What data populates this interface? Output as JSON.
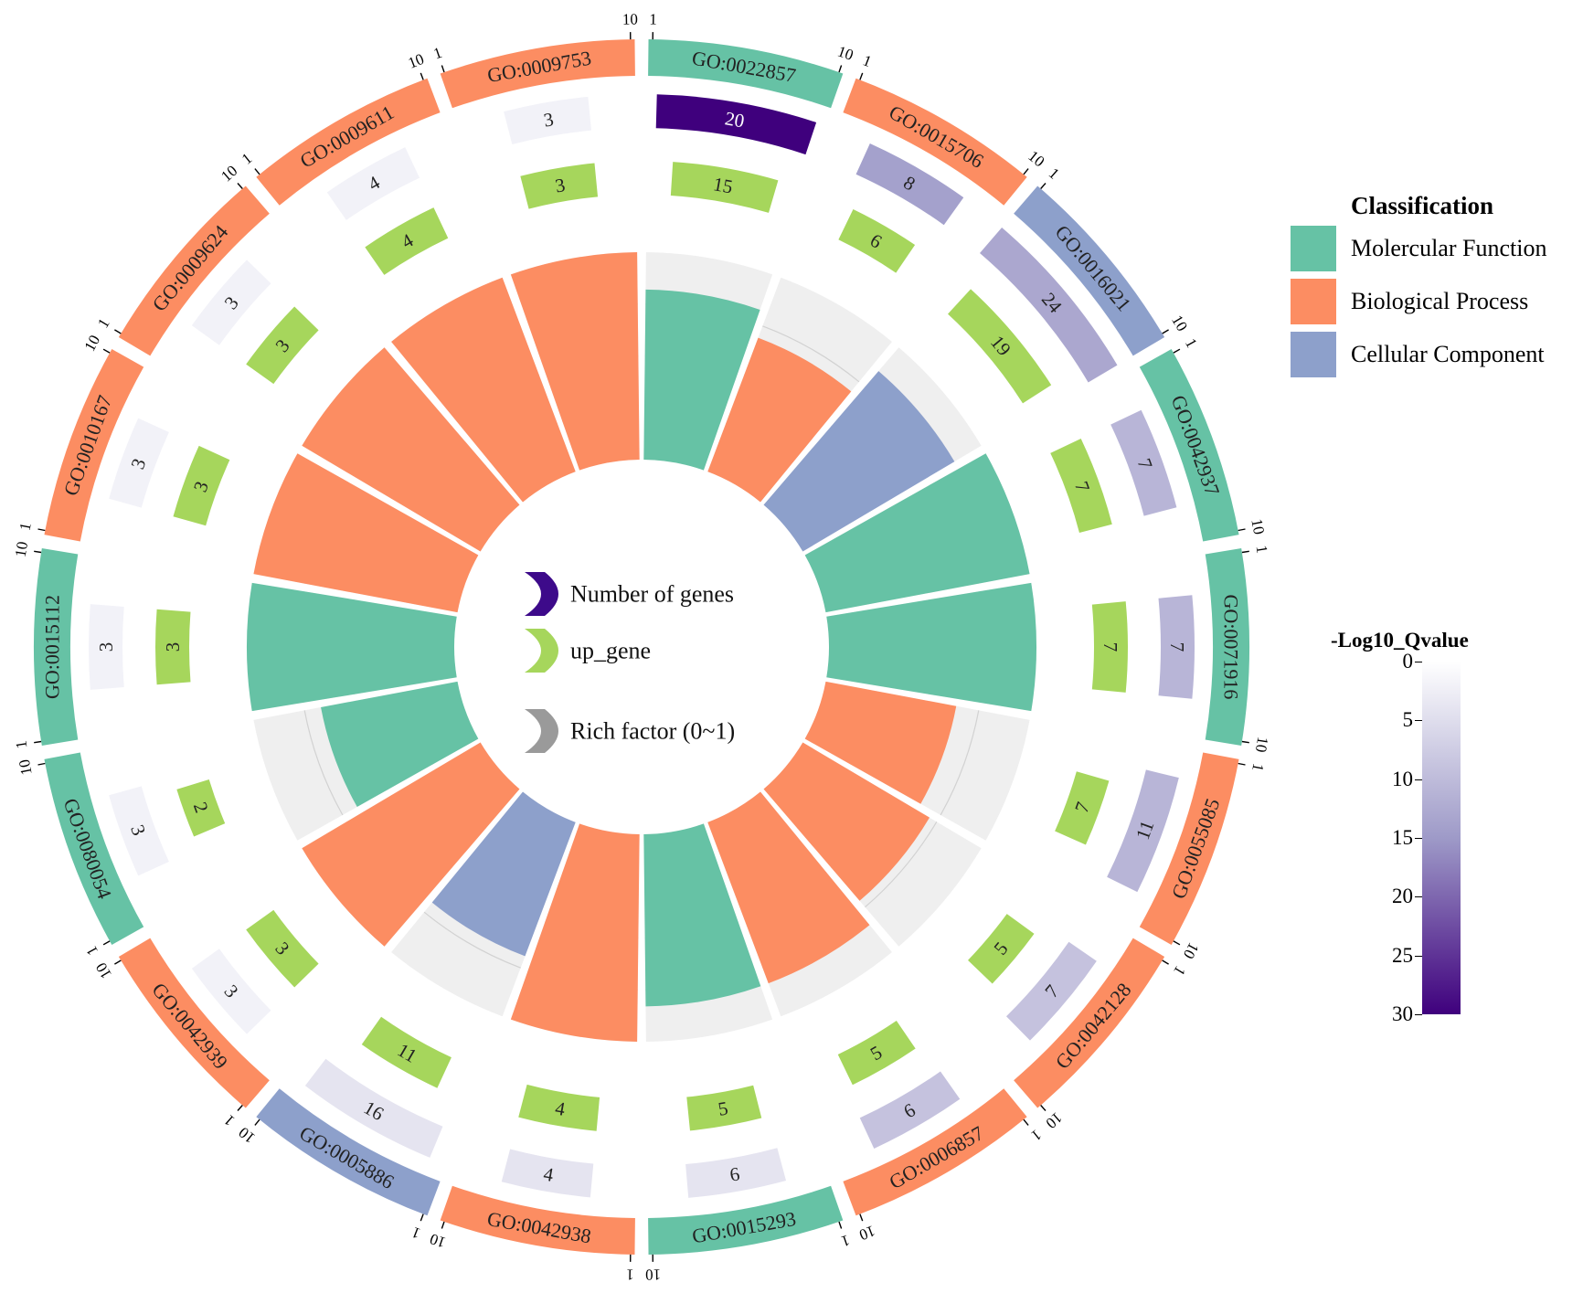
{
  "chart_data": {
    "type": "circular_go_enrichment",
    "terms": [
      {
        "id": "GO:0022857",
        "category": "Molercular Function",
        "number_of_genes": 20,
        "up_gene": 15,
        "neg_log10_q": 30,
        "rich_factor": 0.82
      },
      {
        "id": "GO:0015706",
        "category": "Biological Process",
        "number_of_genes": 8,
        "up_gene": 6,
        "neg_log10_q": 14,
        "rich_factor": 0.69
      },
      {
        "id": "GO:0016021",
        "category": "Cellular Component",
        "number_of_genes": 24,
        "up_gene": 19,
        "neg_log10_q": 13,
        "rich_factor": 0.85
      },
      {
        "id": "GO:0042937",
        "category": "Molercular Function",
        "number_of_genes": 7,
        "up_gene": 7,
        "neg_log10_q": 11,
        "rich_factor": 1.0
      },
      {
        "id": "GO:0071916",
        "category": "Molercular Function",
        "number_of_genes": 7,
        "up_gene": 7,
        "neg_log10_q": 11,
        "rich_factor": 1.0
      },
      {
        "id": "GO:0055085",
        "category": "Biological Process",
        "number_of_genes": 11,
        "up_gene": 7,
        "neg_log10_q": 11,
        "rich_factor": 0.64
      },
      {
        "id": "GO:0042128",
        "category": "Biological Process",
        "number_of_genes": 7,
        "up_gene": 5,
        "neg_log10_q": 9,
        "rich_factor": 0.71
      },
      {
        "id": "GO:0006857",
        "category": "Biological Process",
        "number_of_genes": 6,
        "up_gene": 5,
        "neg_log10_q": 9,
        "rich_factor": 0.83
      },
      {
        "id": "GO:0015293",
        "category": "Molercular Function",
        "number_of_genes": 6,
        "up_gene": 5,
        "neg_log10_q": 4,
        "rich_factor": 0.83
      },
      {
        "id": "GO:0042938",
        "category": "Biological Process",
        "number_of_genes": 4,
        "up_gene": 4,
        "neg_log10_q": 4,
        "rich_factor": 1.0
      },
      {
        "id": "GO:0005886",
        "category": "Cellular Component",
        "number_of_genes": 16,
        "up_gene": 11,
        "neg_log10_q": 4,
        "rich_factor": 0.69
      },
      {
        "id": "GO:0042939",
        "category": "Biological Process",
        "number_of_genes": 3,
        "up_gene": 3,
        "neg_log10_q": 2,
        "rich_factor": 1.0
      },
      {
        "id": "GO:0080054",
        "category": "Molercular Function",
        "number_of_genes": 3,
        "up_gene": 2,
        "neg_log10_q": 2,
        "rich_factor": 0.67
      },
      {
        "id": "GO:0015112",
        "category": "Molercular Function",
        "number_of_genes": 3,
        "up_gene": 3,
        "neg_log10_q": 2,
        "rich_factor": 1.0
      },
      {
        "id": "GO:0010167",
        "category": "Biological Process",
        "number_of_genes": 3,
        "up_gene": 3,
        "neg_log10_q": 2,
        "rich_factor": 1.0
      },
      {
        "id": "GO:0009624",
        "category": "Biological Process",
        "number_of_genes": 3,
        "up_gene": 3,
        "neg_log10_q": 2,
        "rich_factor": 1.0
      },
      {
        "id": "GO:0009611",
        "category": "Biological Process",
        "number_of_genes": 4,
        "up_gene": 4,
        "neg_log10_q": 2,
        "rich_factor": 1.0
      },
      {
        "id": "GO:0009753",
        "category": "Biological Process",
        "number_of_genes": 3,
        "up_gene": 3,
        "neg_log10_q": 2,
        "rich_factor": 1.0
      }
    ],
    "outer_ticks": {
      "start": "1",
      "end": "10"
    },
    "center_legend": [
      "Number of genes",
      "up_gene",
      "Rich factor (0~1)"
    ],
    "center_legend_colors": [
      "#3d0a8a",
      "#a6d65c",
      "#9a9a9a"
    ],
    "classification_title": "Classification",
    "classification": [
      {
        "label": "Molercular Function",
        "color": "#66c2a5"
      },
      {
        "label": "Biological Process",
        "color": "#fc8d62"
      },
      {
        "label": "Cellular Component",
        "color": "#8da0cb"
      }
    ],
    "colorscale": {
      "title": "-Log10_Qvalue",
      "min": 0,
      "max": 30,
      "ticks": [
        "0",
        "5",
        "10",
        "15",
        "20",
        "25",
        "30"
      ],
      "stops": [
        "#ffffff",
        "#9e9ac8",
        "#3f007d"
      ]
    },
    "up_gene_color": "#a6d65c",
    "rich_background_color": "#efefef"
  }
}
